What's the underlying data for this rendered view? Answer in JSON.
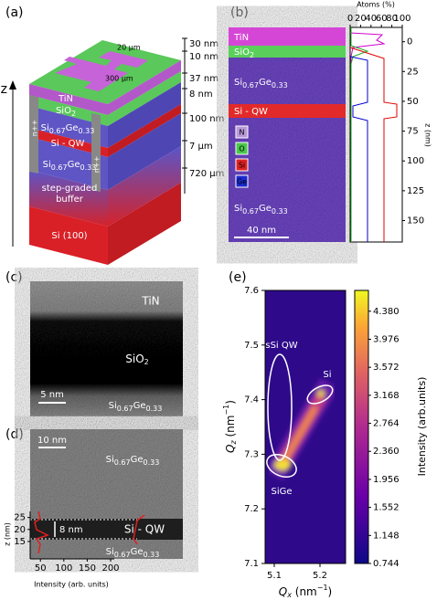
{
  "panel_a": {
    "label": "(a)",
    "axis": "z",
    "tin": "TiN",
    "sio2": [
      "SiO",
      "2"
    ],
    "sige_top": [
      "Si",
      "0.67",
      "Ge",
      "0.33"
    ],
    "qw": "Si - QW",
    "sige_bottom": [
      "Si",
      "0.67",
      "Ge",
      "0.33"
    ],
    "buffer": [
      "step-graded",
      "buffer"
    ],
    "substrate": "Si (100)",
    "contacts": [
      "n++",
      "n++"
    ],
    "dimensions": [
      "30 nm",
      "10 nm",
      "37 nm",
      "8 nm",
      "100 nm",
      "7 µm",
      "720 µm"
    ],
    "top_dimensions": [
      "20 µm",
      "300 µm"
    ]
  },
  "panel_b": {
    "label": "(b)",
    "tin": "TiN",
    "sio2": [
      "SiO",
      "2"
    ],
    "sige_top": [
      "Si",
      "0.67",
      "Ge",
      "0.33"
    ],
    "qw": "Si - QW",
    "sige_bottom": [
      "Si",
      "0.67",
      "Ge",
      "0.33"
    ],
    "elements": [
      "N",
      "O",
      "Si",
      "Ge"
    ],
    "scale_bar": "40 nm",
    "profile": {
      "title": "Atoms (%)",
      "xlim": [
        0,
        100
      ],
      "xticks": [
        0,
        20,
        40,
        60,
        80,
        100
      ],
      "ylabel": "z (nm)",
      "ylim": [
        -12,
        168
      ],
      "yticks": [
        0,
        25,
        50,
        75,
        100,
        125,
        150
      ]
    }
  },
  "panel_c": {
    "label": "(c)",
    "tin": "TiN",
    "sio2": [
      "SiO",
      "2"
    ],
    "scale_bar": "5 nm",
    "sige": [
      "Si",
      "0.67",
      "Ge",
      "0.33"
    ]
  },
  "panel_d": {
    "label": "(d)",
    "scale_bar": "10 nm",
    "sige_top": [
      "Si",
      "0.67",
      "Ge",
      "0.33"
    ],
    "qw": "Si - QW",
    "thickness": "8 nm",
    "sige_bottom": [
      "Si",
      "0.67",
      "Ge",
      "0.33"
    ],
    "ylabel": "z (nm)",
    "ylim": [
      10,
      26
    ],
    "yticks": [
      15,
      20,
      25
    ],
    "xlabel": "Intensity (arb. units)",
    "xlim": [
      32,
      200
    ],
    "xticks": [
      50,
      100,
      150,
      200
    ]
  },
  "panel_e": {
    "label": "(e)",
    "xlabel": [
      "Q",
      "x",
      " (nm",
      "−1",
      ")"
    ],
    "ylabel": [
      "Q",
      "z",
      " (nm",
      "−1",
      ")"
    ],
    "xlim": [
      5.08,
      5.256
    ],
    "xticks": [
      5.1,
      5.2
    ],
    "ylim": [
      7.1,
      7.6
    ],
    "yticks": [
      7.1,
      7.2,
      7.3,
      7.4,
      7.5,
      7.6
    ],
    "colorbar": {
      "label": "Intensity (arb.units)",
      "lim": [
        0.744,
        4.68
      ],
      "ticks": [
        0.744,
        1.148,
        1.552,
        1.956,
        {
          "value": 2.36,
          "label": "2.360"
        },
        2.764,
        3.168,
        3.572,
        3.976,
        {
          "value": 4.38,
          "label": "4.380"
        }
      ]
    },
    "annotations": [
      "sSi QW",
      "Si",
      "SiGe"
    ]
  }
}
